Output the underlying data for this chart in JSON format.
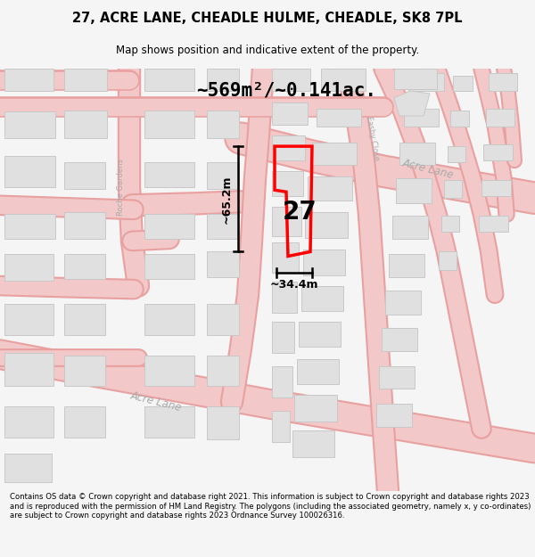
{
  "title_line1": "27, ACRE LANE, CHEADLE HULME, CHEADLE, SK8 7PL",
  "title_line2": "Map shows position and indicative extent of the property.",
  "area_text": "~569m²/~0.141ac.",
  "dim_width": "~34.4m",
  "dim_height": "~65.2m",
  "property_number": "27",
  "footer_text": "Contains OS data © Crown copyright and database right 2021. This information is subject to Crown copyright and database rights 2023 and is reproduced with the permission of HM Land Registry. The polygons (including the associated geometry, namely x, y co-ordinates) are subject to Crown copyright and database rights 2023 Ordnance Survey 100026316.",
  "bg_color": "#f5f5f5",
  "map_bg": "#ffffff",
  "road_fill": "#f2c8c8",
  "road_edge": "#e8a0a0",
  "block_fill": "#e0e0e0",
  "block_edge": "#c8c8c8",
  "prop_color": "#ff0000",
  "text_gray": "#aaaaaa",
  "footer_bg": "#ffffff",
  "title_bg": "#ffffff"
}
